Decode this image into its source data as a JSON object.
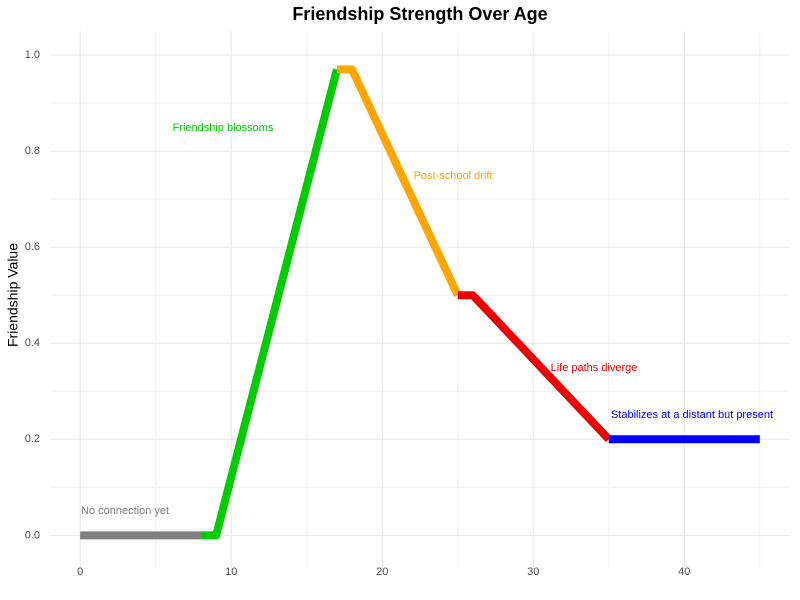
{
  "chart_data": {
    "type": "line",
    "title": "Friendship Strength Over Age",
    "y_label": "Friendship Value",
    "series": [
      {
        "color": "#808080",
        "x": [
          0,
          8
        ],
        "values": [
          0,
          0
        ]
      },
      {
        "color": "#00cc00",
        "x": [
          8,
          9,
          17
        ],
        "values": [
          0,
          0,
          0.97
        ]
      },
      {
        "color": "#ffa500",
        "x": [
          17,
          18,
          25
        ],
        "values": [
          0.97,
          0.97,
          0.5
        ]
      },
      {
        "color": "#ee0000",
        "x": [
          25,
          26,
          35
        ],
        "values": [
          0.5,
          0.5,
          0.2
        ]
      },
      {
        "color": "#0000ff",
        "x": [
          35,
          45
        ],
        "values": [
          0.2,
          0.2
        ]
      }
    ],
    "annotations": [
      {
        "text": "No connection yet",
        "color": "#808080"
      },
      {
        "text": "Friendship blossoms",
        "color": "#00cc00"
      },
      {
        "text": "Post-school drift",
        "color": "#ffa500"
      },
      {
        "text": "Life paths diverge",
        "color": "#ee0000"
      },
      {
        "text": "Stabilizes at a distant but present",
        "color": "#0000ff"
      }
    ],
    "xlim": [
      -2,
      47
    ],
    "ylim": [
      -0.07,
      1.05
    ],
    "xticks": [
      0,
      10,
      20,
      30,
      40
    ],
    "yticks": [
      {
        "value": 0,
        "label": "0.0"
      },
      0.2,
      0.4,
      0.6,
      0.8,
      {
        "value": 1,
        "label": "1.0"
      }
    ],
    "grid": true
  }
}
